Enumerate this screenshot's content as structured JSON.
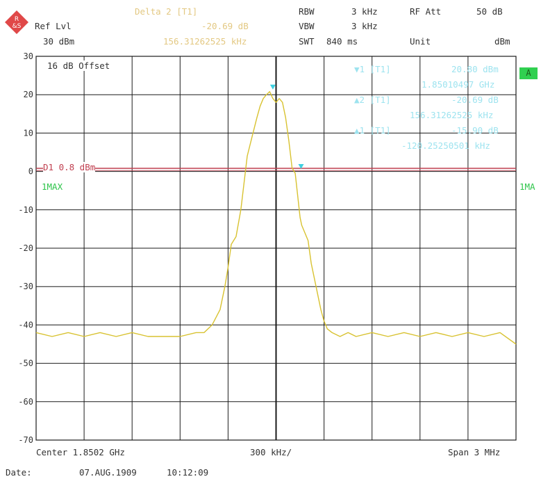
{
  "header": {
    "ref_lvl_label": "Ref Lvl",
    "ref_lvl_value": "30 dBm",
    "delta_marker_label": "Delta 2 [T1]",
    "delta_marker_level": "-20.69 dB",
    "delta_marker_freq": "156.31262525 kHz",
    "rbw_label": "RBW",
    "rbw_value": "3 kHz",
    "vbw_label": "VBW",
    "vbw_value": "3 kHz",
    "swt_label": "SWT",
    "swt_value": "840 ms",
    "rf_att_label": "RF Att",
    "rf_att_value": "50 dB",
    "unit_label": "Unit",
    "unit_value": "dBm"
  },
  "screen": {
    "offset_label": "16 dB Offset",
    "display_line_label": "D1 0.8 dBm",
    "trace_label_left": "1MAX",
    "trace_label_right": "1MA",
    "badge": "A",
    "markers": [
      {
        "label": "1 [T1]",
        "level": "20.80 dBm",
        "freq": "1.85010497 GHz"
      },
      {
        "label": "2 [T1]",
        "level": "-20.69 dB",
        "freq": "156.31262525 kHz"
      },
      {
        "label": "1 [T1]",
        "level": "-15.90 dB",
        "freq": "-120.25250501 kHz"
      }
    ]
  },
  "footer": {
    "center": "Center 1.8502 GHz",
    "per_div": "300 kHz/",
    "span": "Span 3 MHz",
    "date_label": "Date:",
    "date_value": "07.AUG.1909",
    "time_value": "10:12:09"
  },
  "colors": {
    "trace": "#d8c230",
    "grid": "#1a1a1a",
    "display_line": "#c04050",
    "marker": "#3fd0e0"
  },
  "chart_data": {
    "type": "line",
    "title": "",
    "xlabel": "",
    "ylabel": "",
    "xlim": [
      -1500,
      1500
    ],
    "ylim": [
      -70,
      30
    ],
    "x_unit": "kHz offset from center",
    "y_tick_labels": [
      "30",
      "20",
      "10",
      "0",
      "-10",
      "-20",
      "-30",
      "-40",
      "-50",
      "-60",
      "-70"
    ],
    "grid": true,
    "display_line": 0.8,
    "series": [
      {
        "x": [
          -1500,
          -1400,
          -1300,
          -1200,
          -1100,
          -1000,
          -900,
          -800,
          -700,
          -600,
          -500,
          -450,
          -400,
          -350,
          -320,
          -300,
          -280,
          -250,
          -220,
          -200,
          -180,
          -150,
          -120,
          -100,
          -80,
          -60,
          -40,
          -20,
          0,
          20,
          40,
          60,
          80,
          100,
          120,
          150,
          160,
          180,
          200,
          220,
          250,
          280,
          300,
          320,
          350,
          400,
          450,
          500,
          600,
          700,
          800,
          900,
          1000,
          1100,
          1200,
          1300,
          1400,
          1500
        ],
        "y": [
          -42,
          -43,
          -42,
          -43,
          -42,
          -43,
          -42,
          -43,
          -43,
          -43,
          -42,
          -42,
          -40,
          -36,
          -30,
          -25,
          -19,
          -17,
          -10,
          -3,
          4,
          9,
          14,
          17,
          19,
          20,
          20.8,
          19,
          18,
          19,
          18,
          14,
          8,
          1,
          -0.5,
          -12,
          -14,
          -16,
          -18,
          -24,
          -30,
          -36,
          -39,
          -41,
          -42,
          -43,
          -42,
          -43,
          -42,
          -43,
          -42,
          -43,
          -42,
          -43,
          -42,
          -43,
          -42,
          -45
        ]
      }
    ],
    "markers": [
      {
        "name": "1",
        "x": -20,
        "y": 20.8
      },
      {
        "name": "2",
        "x": 156.31,
        "y": 0.11
      }
    ]
  }
}
